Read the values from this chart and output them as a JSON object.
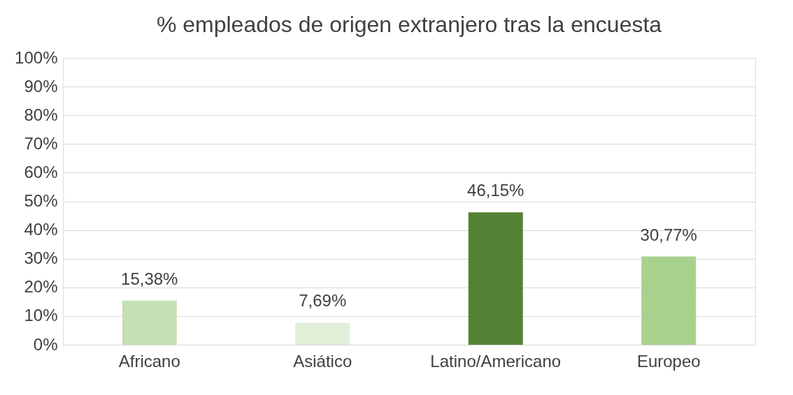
{
  "chart_data": {
    "type": "bar",
    "title": "% empleados de origen extranjero tras la encuesta",
    "categories": [
      "Africano",
      "Asiático",
      "Latino/Americano",
      "Europeo"
    ],
    "values": [
      15.38,
      7.69,
      46.15,
      30.77
    ],
    "colors": [
      "#c5e0b4",
      "#e2efd9",
      "#548235",
      "#a9d18e"
    ],
    "value_labels": [
      "15,38%",
      "7,69%",
      "46,15%",
      "30,77%"
    ],
    "ylim": [
      0,
      100
    ],
    "yticks": [
      {
        "value": 0,
        "label": "0%"
      },
      {
        "value": 10,
        "label": "10%"
      },
      {
        "value": 20,
        "label": "20%"
      },
      {
        "value": 30,
        "label": "30%"
      },
      {
        "value": 40,
        "label": "40%"
      },
      {
        "value": 50,
        "label": "50%"
      },
      {
        "value": 60,
        "label": "60%"
      },
      {
        "value": 70,
        "label": "70%"
      },
      {
        "value": 80,
        "label": "80%"
      },
      {
        "value": 90,
        "label": "90%"
      },
      {
        "value": 100,
        "label": "100%"
      }
    ],
    "grid": "y"
  }
}
